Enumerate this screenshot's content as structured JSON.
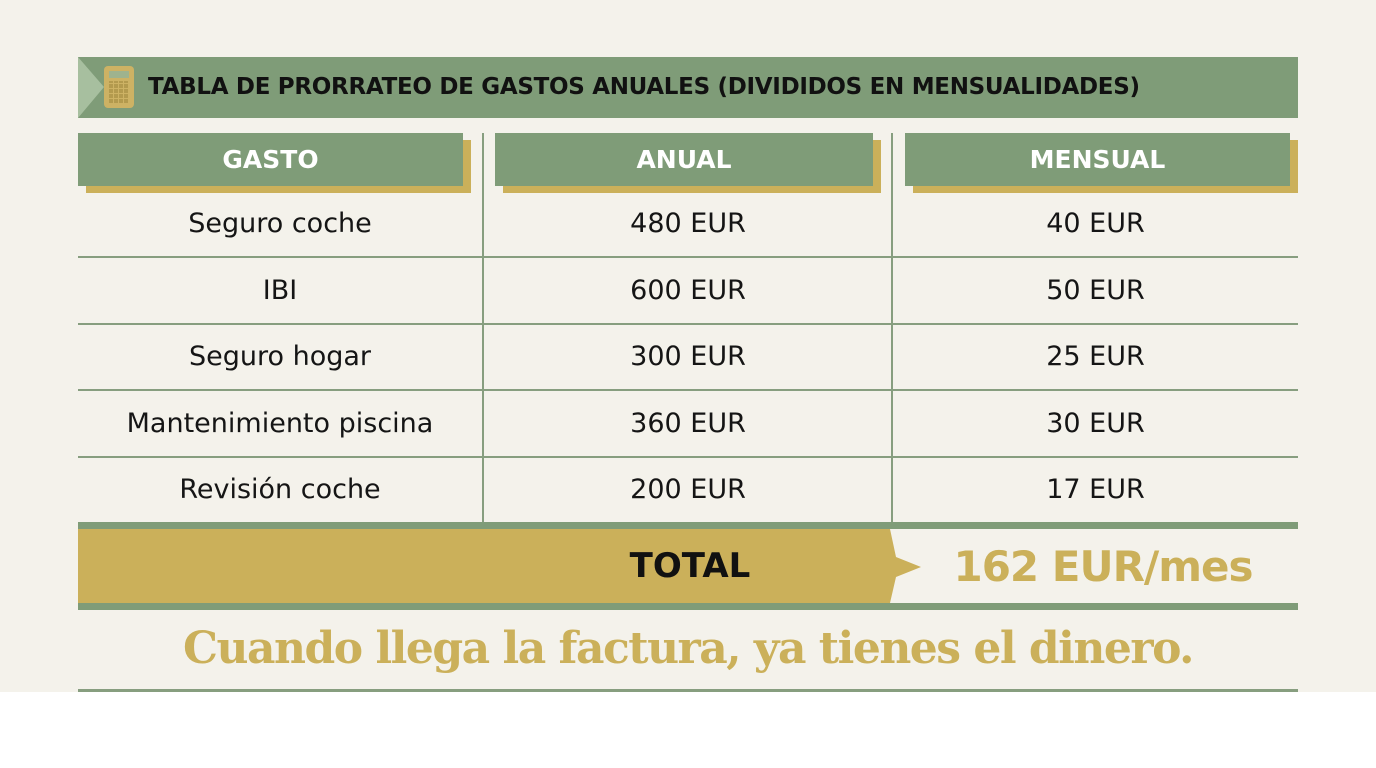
{
  "title": "TABLA DE PRORRATEO DE GASTOS ANUALES (DIVIDIDOS EN MENSUALIDADES)",
  "title_icon": "calculator-icon",
  "columns": [
    "GASTO",
    "ANUAL",
    "MENSUAL"
  ],
  "rows": [
    {
      "gasto": "Seguro coche",
      "anual": "480 EUR",
      "mensual": "40 EUR"
    },
    {
      "gasto": "IBI",
      "anual": "600 EUR",
      "mensual": "50 EUR"
    },
    {
      "gasto": "Seguro hogar",
      "anual": "300 EUR",
      "mensual": "25 EUR"
    },
    {
      "gasto": "Mantenimiento piscina",
      "anual": "360 EUR",
      "mensual": "30 EUR"
    },
    {
      "gasto": "Revisión coche",
      "anual": "200 EUR",
      "mensual": "17 EUR"
    }
  ],
  "total": {
    "label": "TOTAL",
    "value": "162 EUR/mes"
  },
  "slogan": "Cuando llega la factura, ya tienes el dinero.",
  "colors": {
    "green": "#7f9c78",
    "gold": "#cbb05a",
    "background": "#f4f2eb"
  }
}
